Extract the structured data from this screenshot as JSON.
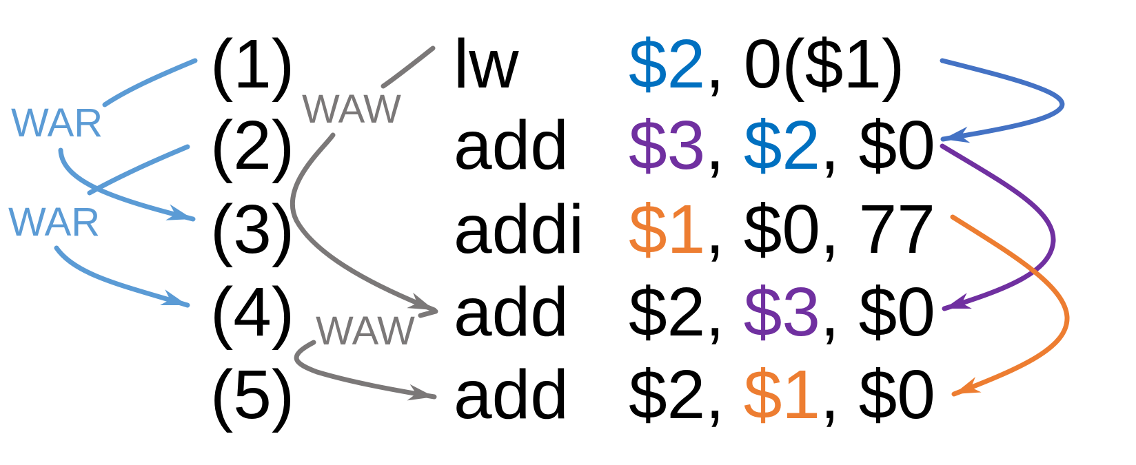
{
  "colors": {
    "text": "#000000",
    "war": "#5b9bd5",
    "waw": "#7b7878",
    "dep_blue": "#4472c4",
    "dep_purple": "#7030a0",
    "dep_orange": "#ed7d31",
    "reg_blue": "#0070c0",
    "reg_purple": "#7030a0",
    "reg_orange": "#ed7d31"
  },
  "instructions": [
    {
      "number": "(1)",
      "opcode": "lw",
      "operands": [
        {
          "text": "$2",
          "color": "reg_blue"
        },
        {
          "text": ", 0($1)",
          "color": "text"
        }
      ]
    },
    {
      "number": "(2)",
      "opcode": "add",
      "operands": [
        {
          "text": "$3",
          "color": "reg_purple"
        },
        {
          "text": ", ",
          "color": "text"
        },
        {
          "text": "$2",
          "color": "reg_blue"
        },
        {
          "text": ", $0",
          "color": "text"
        }
      ]
    },
    {
      "number": "(3)",
      "opcode": "addi",
      "operands": [
        {
          "text": "$1",
          "color": "reg_orange"
        },
        {
          "text": ", $0, 77",
          "color": "text"
        }
      ]
    },
    {
      "number": "(4)",
      "opcode": "add",
      "operands": [
        {
          "text": "$2, ",
          "color": "text"
        },
        {
          "text": "$3",
          "color": "reg_purple"
        },
        {
          "text": ", $0",
          "color": "text"
        }
      ]
    },
    {
      "number": "(5)",
      "opcode": "add",
      "operands": [
        {
          "text": "$2, ",
          "color": "text"
        },
        {
          "text": "$1",
          "color": "reg_orange"
        },
        {
          "text": ", $0",
          "color": "text"
        }
      ]
    }
  ],
  "dependencies": [
    {
      "kind": "war",
      "label": "WAR",
      "from": "(1)",
      "to": "(3)",
      "color": "war"
    },
    {
      "kind": "war",
      "label": "WAR",
      "from": "(2)",
      "to": "(4)",
      "color": "war"
    },
    {
      "kind": "waw",
      "label": "WAW",
      "from": "(1)",
      "to": "(4)",
      "color": "waw"
    },
    {
      "kind": "waw",
      "label": "WAW",
      "from": "(4)",
      "to": "(5)",
      "color": "waw"
    },
    {
      "kind": "raw",
      "label": "",
      "from": "(1)",
      "to": "(2)",
      "color": "dep_blue"
    },
    {
      "kind": "raw",
      "label": "",
      "from": "(2)",
      "to": "(4)",
      "color": "dep_purple"
    },
    {
      "kind": "raw",
      "label": "",
      "from": "(3)",
      "to": "(5)",
      "color": "dep_orange"
    }
  ]
}
